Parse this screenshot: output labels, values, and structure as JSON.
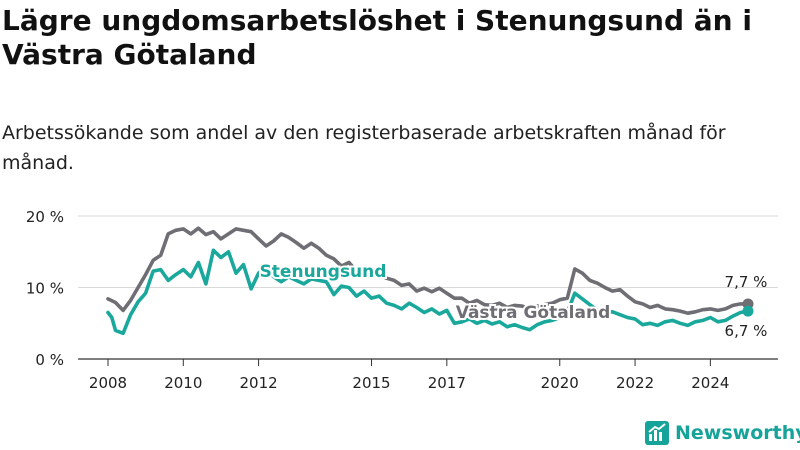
{
  "title": "Lägre ungdomsarbetslöshet i Stenungsund än i Västra Götaland",
  "subtitle": "Arbetssökande som andel av den registerbaserade arbetskraften månad för månad.",
  "brand": "Newsworthy",
  "colors": {
    "stenungsund": "#1aa89c",
    "vg": "#6f6e74",
    "grid": "#d9d9d9",
    "text": "#222222"
  },
  "chart_data": {
    "type": "line",
    "ylim": [
      0,
      20
    ],
    "y_ticks": [
      0,
      10,
      20
    ],
    "y_tick_labels": [
      "0 %",
      "10 %",
      "20 %"
    ],
    "xlim": [
      2008.0,
      2025.0
    ],
    "x_ticks": [
      2008,
      2010,
      2012,
      2015,
      2017,
      2020,
      2022,
      2024
    ],
    "x_tick_labels": [
      "2008",
      "2010",
      "2012",
      "2015",
      "2017",
      "2020",
      "2022",
      "2024"
    ],
    "grid": true,
    "series": [
      {
        "name": "Västra Götaland",
        "color": "#6f6e74",
        "points": [
          [
            2008.0,
            8.4
          ],
          [
            2008.2,
            7.9
          ],
          [
            2008.4,
            6.8
          ],
          [
            2008.6,
            8.2
          ],
          [
            2008.8,
            10.0
          ],
          [
            2009.0,
            11.8
          ],
          [
            2009.2,
            13.8
          ],
          [
            2009.4,
            14.5
          ],
          [
            2009.6,
            17.5
          ],
          [
            2009.8,
            18.0
          ],
          [
            2010.0,
            18.2
          ],
          [
            2010.2,
            17.5
          ],
          [
            2010.4,
            18.3
          ],
          [
            2010.6,
            17.4
          ],
          [
            2010.8,
            17.8
          ],
          [
            2011.0,
            16.8
          ],
          [
            2011.2,
            17.5
          ],
          [
            2011.4,
            18.2
          ],
          [
            2011.6,
            18.0
          ],
          [
            2011.8,
            17.8
          ],
          [
            2012.0,
            16.8
          ],
          [
            2012.2,
            15.8
          ],
          [
            2012.4,
            16.5
          ],
          [
            2012.6,
            17.5
          ],
          [
            2012.8,
            17.0
          ],
          [
            2013.0,
            16.3
          ],
          [
            2013.2,
            15.5
          ],
          [
            2013.4,
            16.2
          ],
          [
            2013.6,
            15.5
          ],
          [
            2013.8,
            14.5
          ],
          [
            2014.0,
            14.0
          ],
          [
            2014.2,
            13.0
          ],
          [
            2014.4,
            13.5
          ],
          [
            2014.6,
            12.3
          ],
          [
            2014.8,
            12.5
          ],
          [
            2015.0,
            11.8
          ],
          [
            2015.2,
            11.8
          ],
          [
            2015.4,
            11.3
          ],
          [
            2015.6,
            11.0
          ],
          [
            2015.8,
            10.3
          ],
          [
            2016.0,
            10.5
          ],
          [
            2016.2,
            9.5
          ],
          [
            2016.4,
            9.9
          ],
          [
            2016.6,
            9.4
          ],
          [
            2016.8,
            9.9
          ],
          [
            2017.0,
            9.2
          ],
          [
            2017.2,
            8.5
          ],
          [
            2017.4,
            8.5
          ],
          [
            2017.6,
            7.8
          ],
          [
            2017.8,
            8.2
          ],
          [
            2018.0,
            7.6
          ],
          [
            2018.2,
            7.5
          ],
          [
            2018.4,
            7.8
          ],
          [
            2018.6,
            7.2
          ],
          [
            2018.8,
            7.5
          ],
          [
            2019.0,
            7.4
          ],
          [
            2019.2,
            7.0
          ],
          [
            2019.4,
            7.4
          ],
          [
            2019.6,
            7.6
          ],
          [
            2019.8,
            7.8
          ],
          [
            2020.0,
            8.3
          ],
          [
            2020.2,
            8.5
          ],
          [
            2020.4,
            12.6
          ],
          [
            2020.6,
            12.0
          ],
          [
            2020.8,
            11.0
          ],
          [
            2021.0,
            10.6
          ],
          [
            2021.2,
            10.0
          ],
          [
            2021.4,
            9.5
          ],
          [
            2021.6,
            9.7
          ],
          [
            2021.8,
            8.8
          ],
          [
            2022.0,
            8.0
          ],
          [
            2022.2,
            7.7
          ],
          [
            2022.4,
            7.2
          ],
          [
            2022.6,
            7.5
          ],
          [
            2022.8,
            7.0
          ],
          [
            2023.0,
            6.9
          ],
          [
            2023.2,
            6.7
          ],
          [
            2023.4,
            6.4
          ],
          [
            2023.6,
            6.6
          ],
          [
            2023.8,
            6.9
          ],
          [
            2024.0,
            7.0
          ],
          [
            2024.2,
            6.8
          ],
          [
            2024.4,
            7.0
          ],
          [
            2024.6,
            7.5
          ],
          [
            2024.8,
            7.7
          ],
          [
            2025.0,
            7.7
          ]
        ],
        "end_label": "7,7 %"
      },
      {
        "name": "Stenungsund",
        "color": "#1aa89c",
        "points": [
          [
            2008.0,
            6.5
          ],
          [
            2008.1,
            5.8
          ],
          [
            2008.2,
            4.0
          ],
          [
            2008.4,
            3.6
          ],
          [
            2008.6,
            6.2
          ],
          [
            2008.8,
            8.0
          ],
          [
            2009.0,
            9.2
          ],
          [
            2009.2,
            12.3
          ],
          [
            2009.4,
            12.5
          ],
          [
            2009.6,
            11.0
          ],
          [
            2009.8,
            11.8
          ],
          [
            2010.0,
            12.5
          ],
          [
            2010.2,
            11.5
          ],
          [
            2010.4,
            13.5
          ],
          [
            2010.6,
            10.5
          ],
          [
            2010.8,
            15.2
          ],
          [
            2011.0,
            14.2
          ],
          [
            2011.2,
            15.0
          ],
          [
            2011.4,
            12.0
          ],
          [
            2011.6,
            13.2
          ],
          [
            2011.8,
            9.8
          ],
          [
            2012.0,
            12.0
          ],
          [
            2012.2,
            13.0
          ],
          [
            2012.4,
            11.5
          ],
          [
            2012.6,
            10.8
          ],
          [
            2012.8,
            11.5
          ],
          [
            2013.0,
            11.0
          ],
          [
            2013.2,
            10.5
          ],
          [
            2013.4,
            11.2
          ],
          [
            2013.6,
            11.0
          ],
          [
            2013.8,
            10.8
          ],
          [
            2014.0,
            9.0
          ],
          [
            2014.2,
            10.2
          ],
          [
            2014.4,
            10.0
          ],
          [
            2014.6,
            8.8
          ],
          [
            2014.8,
            9.5
          ],
          [
            2015.0,
            8.5
          ],
          [
            2015.2,
            8.8
          ],
          [
            2015.4,
            7.8
          ],
          [
            2015.6,
            7.5
          ],
          [
            2015.8,
            7.0
          ],
          [
            2016.0,
            7.8
          ],
          [
            2016.2,
            7.2
          ],
          [
            2016.4,
            6.5
          ],
          [
            2016.6,
            7.0
          ],
          [
            2016.8,
            6.3
          ],
          [
            2017.0,
            6.8
          ],
          [
            2017.2,
            5.0
          ],
          [
            2017.4,
            5.2
          ],
          [
            2017.6,
            5.6
          ],
          [
            2017.8,
            5.0
          ],
          [
            2018.0,
            5.4
          ],
          [
            2018.2,
            4.9
          ],
          [
            2018.4,
            5.2
          ],
          [
            2018.6,
            4.5
          ],
          [
            2018.8,
            4.8
          ],
          [
            2019.0,
            4.4
          ],
          [
            2019.2,
            4.1
          ],
          [
            2019.4,
            4.8
          ],
          [
            2019.6,
            5.2
          ],
          [
            2019.8,
            5.4
          ],
          [
            2020.0,
            5.8
          ],
          [
            2020.2,
            6.5
          ],
          [
            2020.4,
            9.2
          ],
          [
            2020.6,
            8.4
          ],
          [
            2020.8,
            7.6
          ],
          [
            2021.0,
            6.8
          ],
          [
            2021.2,
            6.5
          ],
          [
            2021.4,
            6.6
          ],
          [
            2021.6,
            6.2
          ],
          [
            2021.8,
            5.8
          ],
          [
            2022.0,
            5.6
          ],
          [
            2022.2,
            4.8
          ],
          [
            2022.4,
            5.0
          ],
          [
            2022.6,
            4.7
          ],
          [
            2022.8,
            5.2
          ],
          [
            2023.0,
            5.4
          ],
          [
            2023.2,
            5.0
          ],
          [
            2023.4,
            4.7
          ],
          [
            2023.6,
            5.2
          ],
          [
            2023.8,
            5.4
          ],
          [
            2024.0,
            5.8
          ],
          [
            2024.2,
            5.2
          ],
          [
            2024.4,
            5.4
          ],
          [
            2024.6,
            6.0
          ],
          [
            2024.8,
            6.5
          ],
          [
            2025.0,
            6.7
          ]
        ],
        "end_label": "6,7 %"
      }
    ]
  }
}
